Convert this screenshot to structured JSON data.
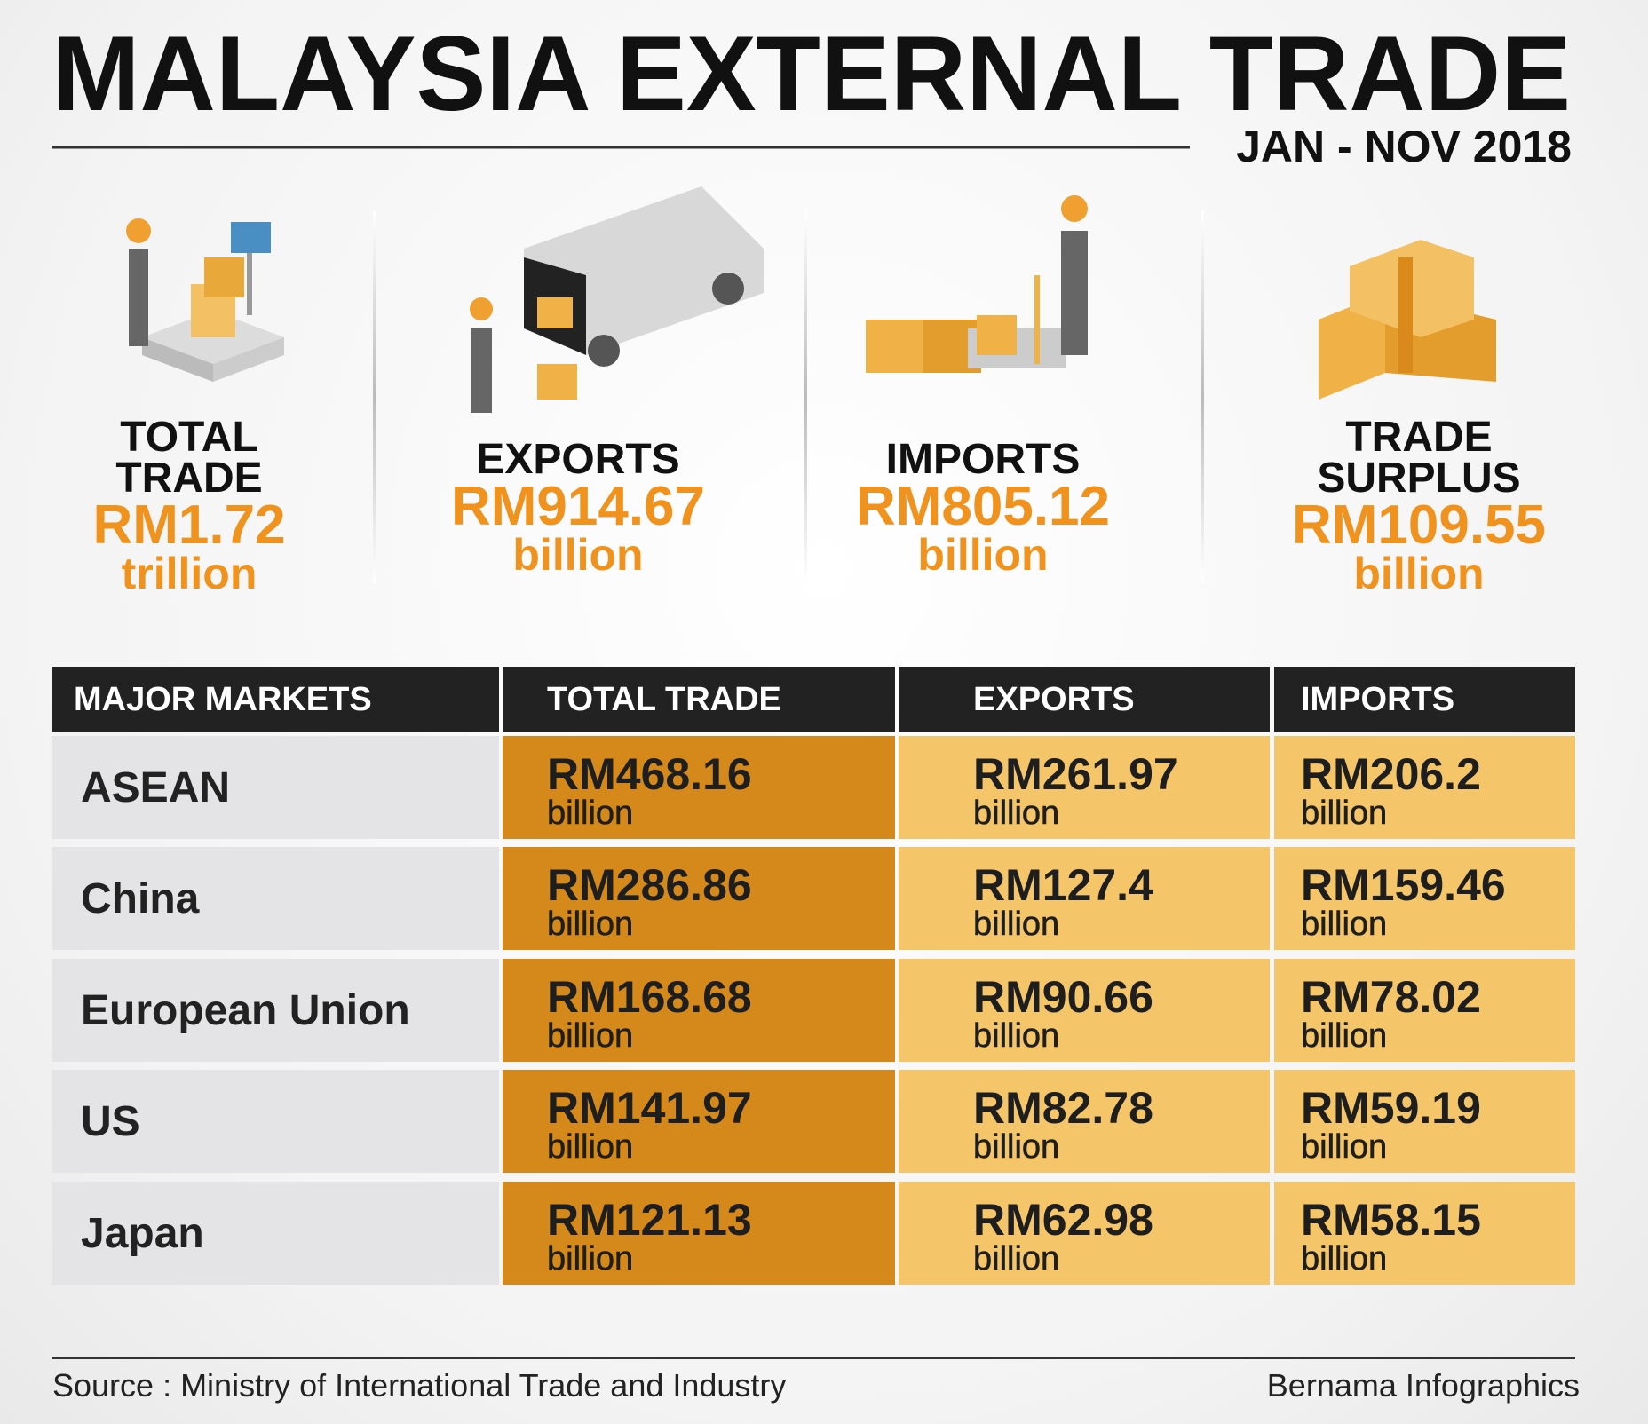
{
  "header": {
    "title": "MALAYSIA EXTERNAL TRADE",
    "period": "JAN - NOV 2018"
  },
  "stats": [
    {
      "label": "TOTAL TRADE",
      "value": "RM1.72",
      "unit": "trillion"
    },
    {
      "label": "EXPORTS",
      "value": "RM914.67",
      "unit": "billion"
    },
    {
      "label": "IMPORTS",
      "value": "RM805.12",
      "unit": "billion"
    },
    {
      "label": "TRADE SURPLUS",
      "value": "RM109.55",
      "unit": "billion"
    }
  ],
  "table": {
    "columns": [
      "MAJOR MARKETS",
      "TOTAL TRADE",
      "EXPORTS",
      "IMPORTS"
    ],
    "rows": [
      {
        "market": "ASEAN",
        "cells": [
          {
            "value": "RM468.16",
            "unit": "billion"
          },
          {
            "value": "RM261.97",
            "unit": "billion"
          },
          {
            "value": "RM206.2",
            "unit": "billion"
          }
        ]
      },
      {
        "market": "China",
        "cells": [
          {
            "value": "RM286.86",
            "unit": "billion"
          },
          {
            "value": "RM127.4",
            "unit": "billion"
          },
          {
            "value": "RM159.46",
            "unit": "billion"
          }
        ]
      },
      {
        "market": "European Union",
        "cells": [
          {
            "value": "RM168.68",
            "unit": "billion"
          },
          {
            "value": "RM90.66",
            "unit": "billion"
          },
          {
            "value": "RM78.02",
            "unit": "billion"
          }
        ]
      },
      {
        "market": "US",
        "cells": [
          {
            "value": "RM141.97",
            "unit": "billion"
          },
          {
            "value": "RM82.78",
            "unit": "billion"
          },
          {
            "value": "RM59.19",
            "unit": "billion"
          }
        ]
      },
      {
        "market": "Japan",
        "cells": [
          {
            "value": "RM121.13",
            "unit": "billion"
          },
          {
            "value": "RM62.98",
            "unit": "billion"
          },
          {
            "value": "RM58.15",
            "unit": "billion"
          }
        ]
      }
    ]
  },
  "footer": {
    "source": "Source : Ministry of International Trade and Industry",
    "credit": "Bernama Infographics"
  }
}
